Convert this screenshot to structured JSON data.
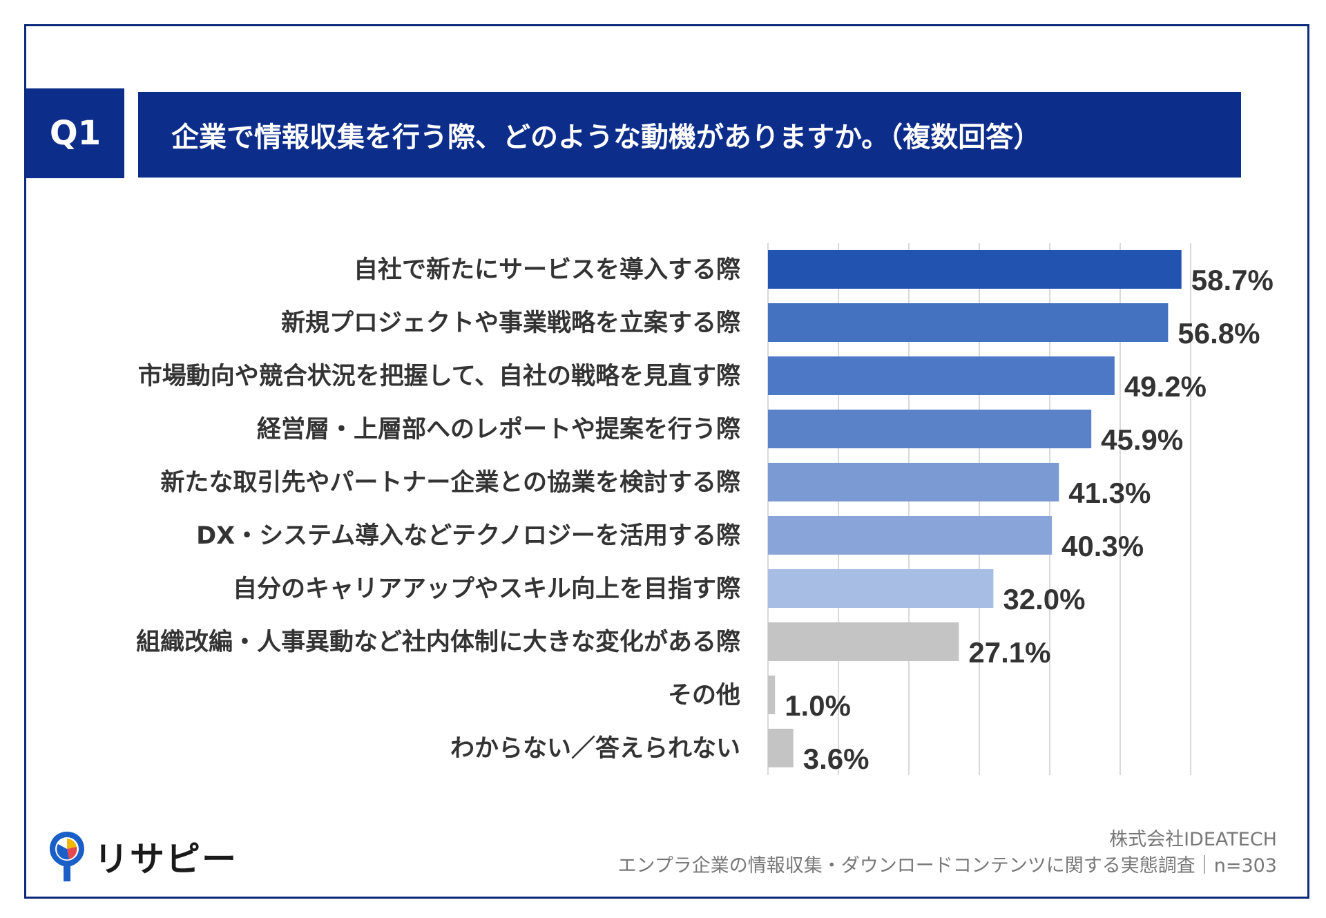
{
  "header": {
    "badge": "Q1",
    "question": "企業で情報収集を行う際、どのような動機がありますか。（複数回答）"
  },
  "colors": {
    "navy": "#0d2d8a",
    "frame": "#0b2a7a",
    "gray_bar": "#c4c4c4",
    "grid": "#d9d9d9",
    "blue_bars": [
      "#2253b0",
      "#4471c0",
      "#4d78c5",
      "#5a82c9",
      "#7b9ad4",
      "#88a4d9",
      "#a8bde3"
    ]
  },
  "chart_data": {
    "type": "bar",
    "orientation": "horizontal",
    "title": "企業で情報収集を行う際、どのような動機がありますか。（複数回答）",
    "categories": [
      "自社で新たにサービスを導入する際",
      "新規プロジェクトや事業戦略を立案する際",
      "市場動向や競合状況を把握して、自社の戦略を見直す際",
      "経営層・上層部へのレポートや提案を行う際",
      "新たな取引先やパートナー企業との協業を検討する際",
      "DX・システム導入などテクノロジーを活用する際",
      "自分のキャリアアップやスキル向上を目指す際",
      "組織改編・人事異動など社内体制に大きな変化がある際",
      "その他",
      "わからない／答えられない"
    ],
    "values": [
      58.7,
      56.8,
      49.2,
      45.9,
      41.3,
      40.3,
      32.0,
      27.1,
      1.0,
      3.6
    ],
    "labels": [
      "58.7%",
      "56.8%",
      "49.2%",
      "45.9%",
      "41.3%",
      "40.3%",
      "32.0%",
      "27.1%",
      "1.0%",
      "3.6%"
    ],
    "xlim": [
      0,
      60
    ],
    "grid": true,
    "unit": "%"
  },
  "footer": {
    "company": "株式会社IDEATECH",
    "survey": "エンプラ企業の情報収集・ダウンロードコンテンツに関する実態調査｜n=303"
  },
  "logo": {
    "text": "リサピー",
    "icon": "pin-pie-icon"
  }
}
